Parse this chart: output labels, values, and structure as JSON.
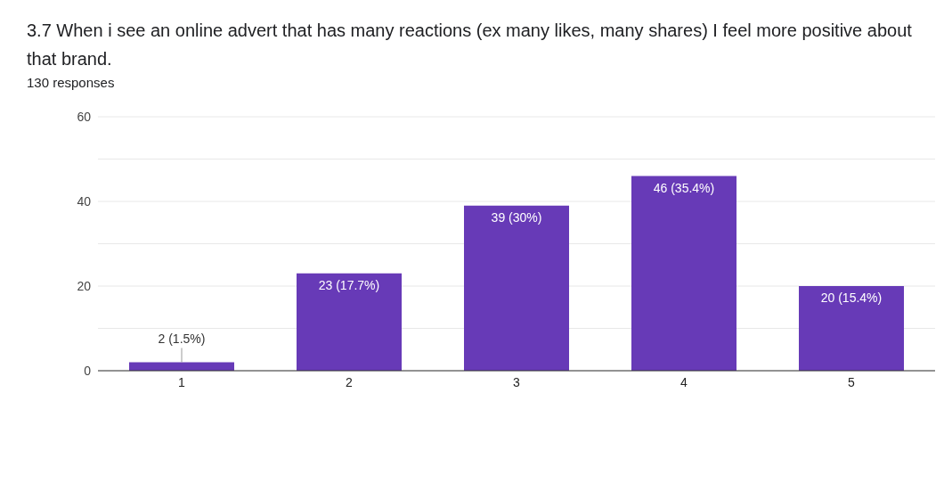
{
  "chart_data": {
    "type": "bar",
    "title": "3.7 When i see an online advert that has many reactions (ex many likes, many shares) I feel more positive about that brand.",
    "subtitle": "130 responses",
    "categories": [
      "1",
      "2",
      "3",
      "4",
      "5"
    ],
    "values": [
      2,
      23,
      39,
      46,
      20
    ],
    "value_labels": [
      "2 (1.5%)",
      "23 (17.7%)",
      "39 (30%)",
      "46 (35.4%)",
      "20 (15.4%)"
    ],
    "color": "#673ab7",
    "ylim": [
      0,
      60
    ],
    "yticks": [
      0,
      {
        "value": 10,
        "label": null
      },
      20,
      {
        "value": 30,
        "label": null
      },
      40,
      {
        "value": 50,
        "label": null
      },
      60
    ],
    "grid": "y",
    "legend": false
  }
}
